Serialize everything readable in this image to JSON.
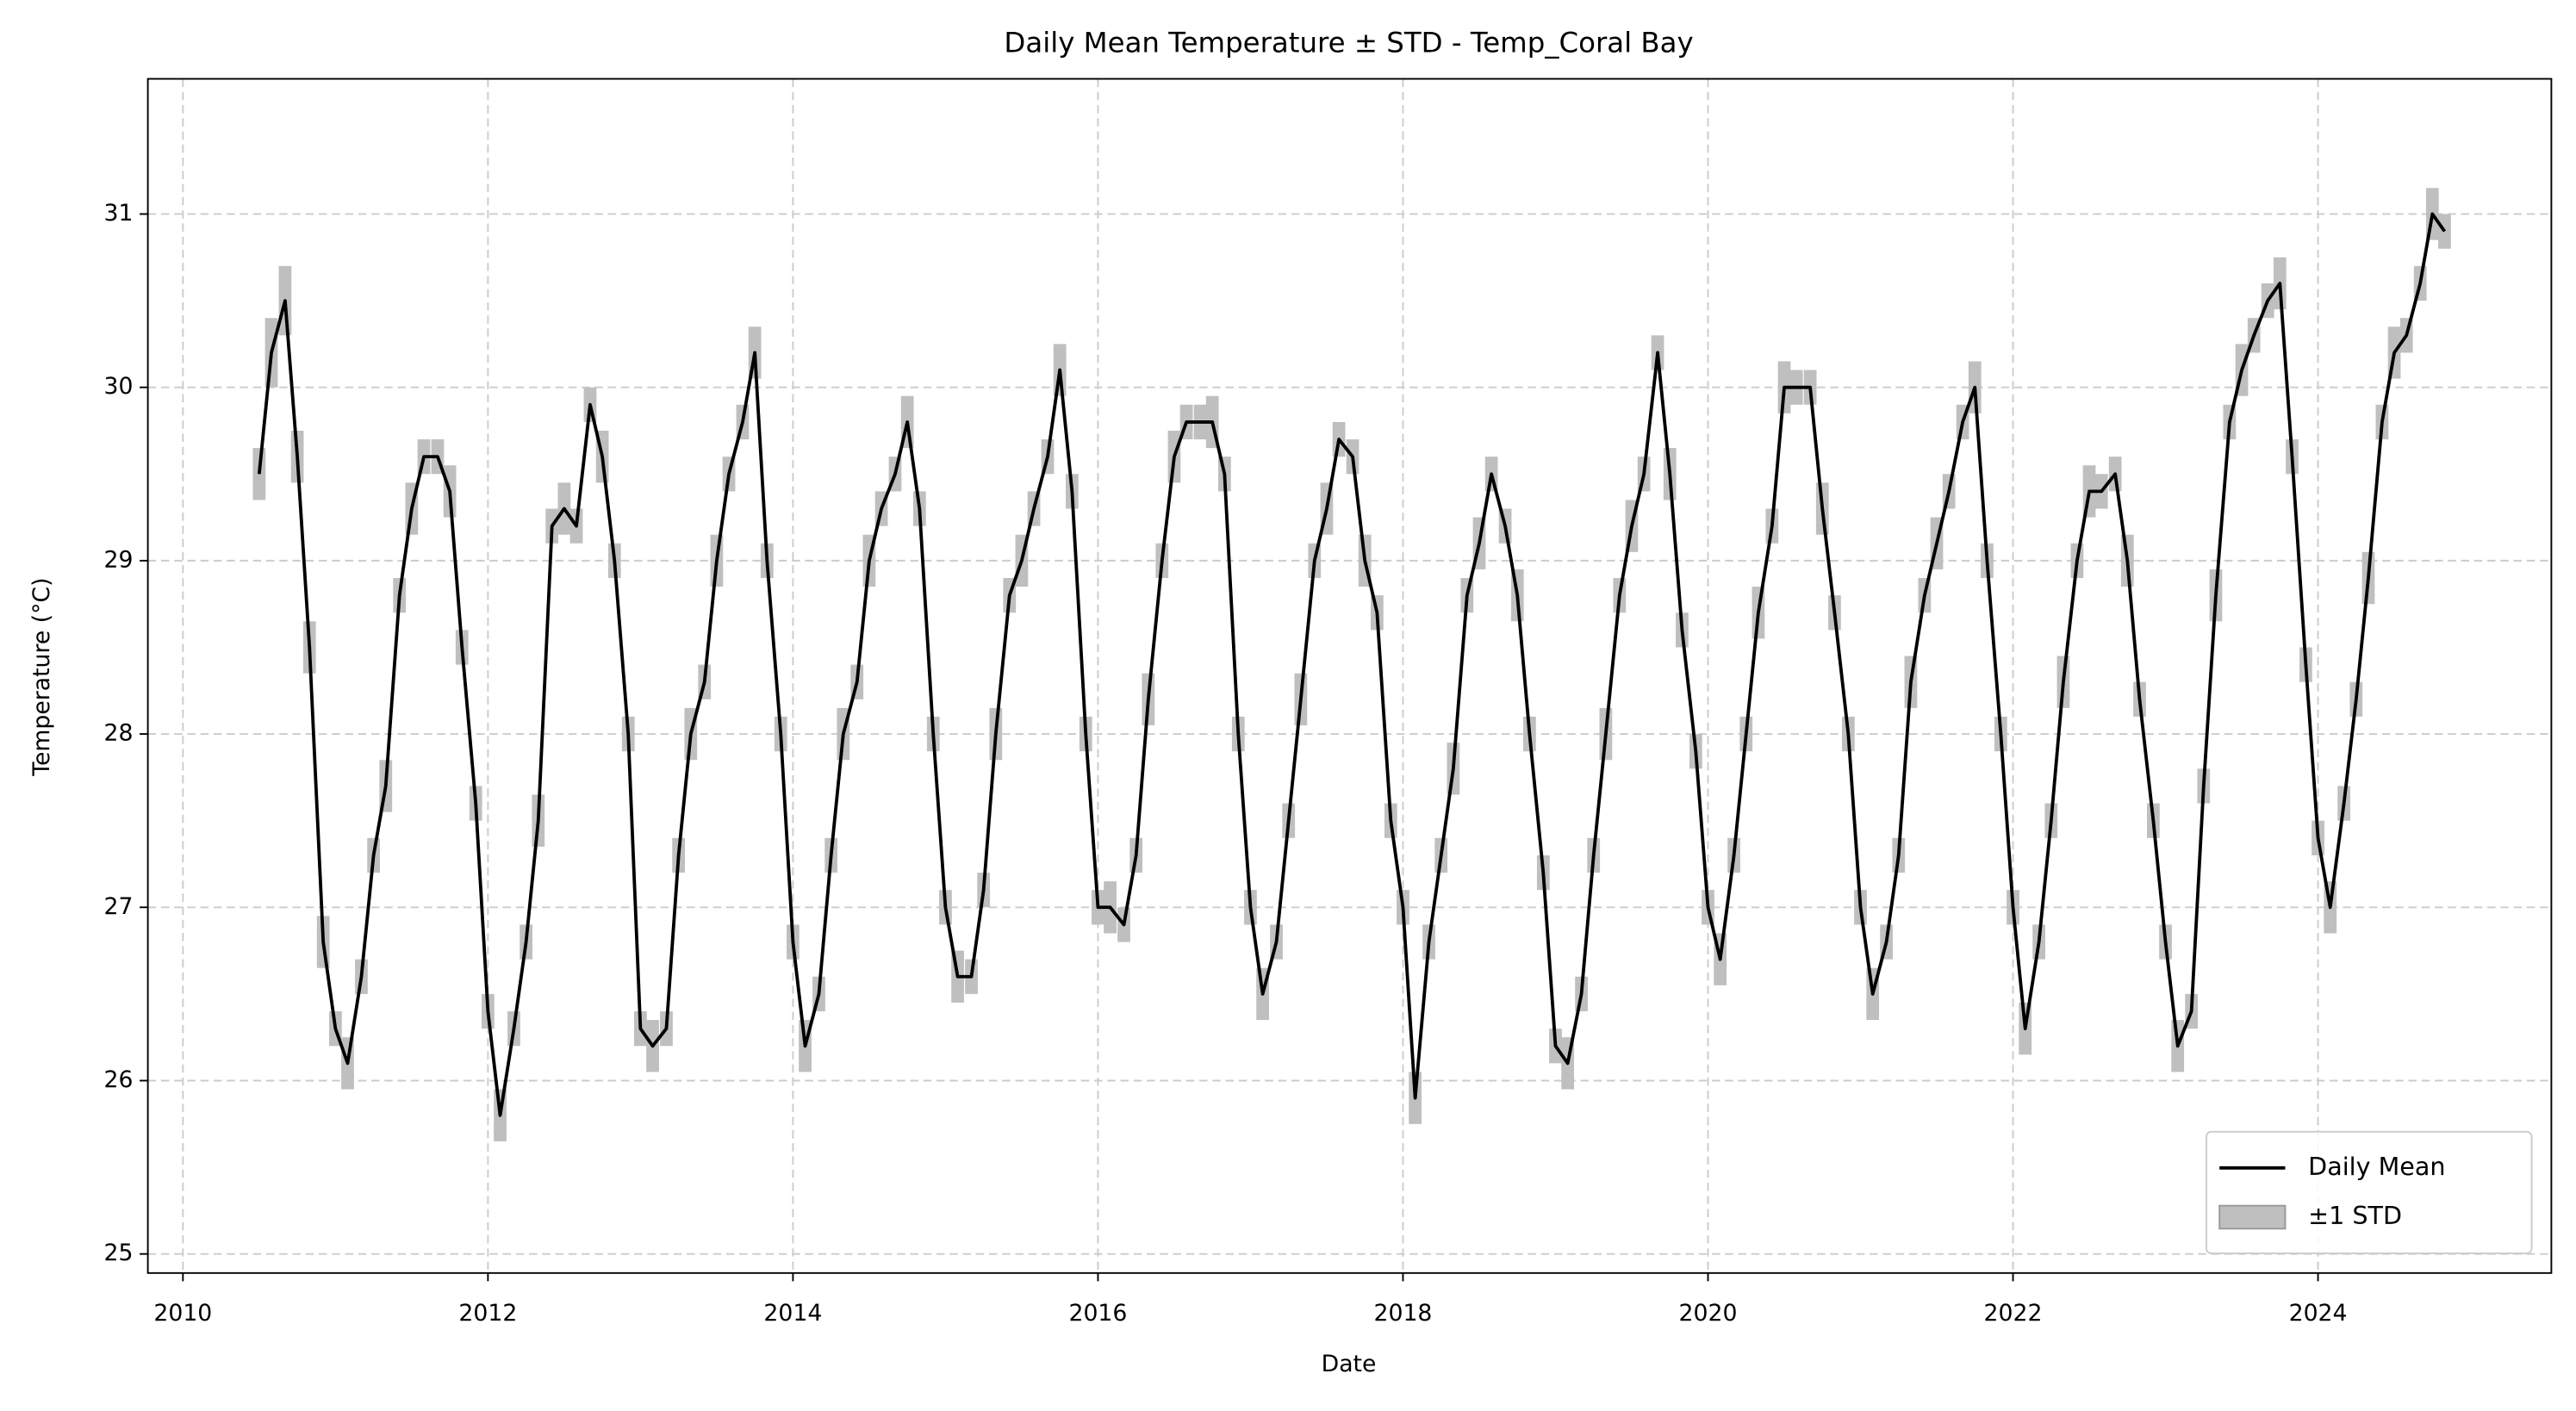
{
  "chart_data": {
    "type": "line",
    "title": "Daily Mean Temperature ± STD - Temp_Coral Bay",
    "x_label": "Date",
    "y_label": "Temperature (°C)",
    "xlim": [
      2009.77,
      2025.53
    ],
    "xticks": [
      2010,
      2012,
      2014,
      2016,
      2018,
      2020,
      2022,
      2024
    ],
    "ylim": [
      24.89,
      31.78
    ],
    "yticks": [
      25,
      26,
      27,
      28,
      29,
      30,
      31
    ],
    "grid": true,
    "legend": "lower right",
    "x": [
      2010.5,
      2010.58,
      2010.67,
      2010.75,
      2010.83,
      2010.92,
      2011,
      2011.08,
      2011.17,
      2011.25,
      2011.33,
      2011.42,
      2011.5,
      2011.58,
      2011.67,
      2011.75,
      2011.83,
      2011.92,
      2012,
      2012.08,
      2012.17,
      2012.25,
      2012.33,
      2012.42,
      2012.5,
      2012.58,
      2012.67,
      2012.75,
      2012.83,
      2012.92,
      2013,
      2013.08,
      2013.17,
      2013.25,
      2013.33,
      2013.42,
      2013.5,
      2013.58,
      2013.67,
      2013.75,
      2013.83,
      2013.92,
      2014,
      2014.08,
      2014.17,
      2014.25,
      2014.33,
      2014.42,
      2014.5,
      2014.58,
      2014.67,
      2014.75,
      2014.83,
      2014.92,
      2015,
      2015.08,
      2015.17,
      2015.25,
      2015.33,
      2015.42,
      2015.5,
      2015.58,
      2015.67,
      2015.75,
      2015.83,
      2015.92,
      2016,
      2016.08,
      2016.17,
      2016.25,
      2016.33,
      2016.42,
      2016.5,
      2016.58,
      2016.67,
      2016.75,
      2016.83,
      2016.92,
      2017,
      2017.08,
      2017.17,
      2017.25,
      2017.33,
      2017.42,
      2017.5,
      2017.58,
      2017.67,
      2017.75,
      2017.83,
      2017.92,
      2018,
      2018.08,
      2018.17,
      2018.25,
      2018.33,
      2018.42,
      2018.5,
      2018.58,
      2018.67,
      2018.75,
      2018.83,
      2018.92,
      2019,
      2019.08,
      2019.17,
      2019.25,
      2019.33,
      2019.42,
      2019.5,
      2019.58,
      2019.67,
      2019.75,
      2019.83,
      2019.92,
      2020,
      2020.08,
      2020.17,
      2020.25,
      2020.33,
      2020.42,
      2020.5,
      2020.58,
      2020.67,
      2020.75,
      2020.83,
      2020.92,
      2021,
      2021.08,
      2021.17,
      2021.25,
      2021.33,
      2021.42,
      2021.5,
      2021.58,
      2021.67,
      2021.75,
      2021.83,
      2021.92,
      2022,
      2022.08,
      2022.17,
      2022.25,
      2022.33,
      2022.42,
      2022.5,
      2022.58,
      2022.67,
      2022.75,
      2022.83,
      2022.92,
      2023,
      2023.08,
      2023.17,
      2023.25,
      2023.33,
      2023.42,
      2023.5,
      2023.58,
      2023.67,
      2023.75,
      2023.83,
      2023.92,
      2024,
      2024.08,
      2024.17,
      2024.25,
      2024.33,
      2024.42,
      2024.5,
      2024.58,
      2024.67,
      2024.75,
      2024.83
    ],
    "series": [
      {
        "name": "Daily Mean",
        "color": "#000000",
        "values": [
          29.5,
          30.2,
          30.5,
          29.6,
          28.5,
          26.8,
          26.3,
          26.1,
          26.6,
          27.3,
          27.7,
          28.8,
          29.3,
          29.6,
          29.6,
          29.4,
          28.5,
          27.6,
          26.4,
          25.8,
          26.3,
          26.8,
          27.5,
          29.2,
          29.3,
          29.2,
          29.9,
          29.6,
          29.0,
          28.0,
          26.3,
          26.2,
          26.3,
          27.3,
          28.0,
          28.3,
          29.0,
          29.5,
          29.8,
          30.2,
          29.0,
          28.0,
          26.8,
          26.2,
          26.5,
          27.3,
          28.0,
          28.3,
          29.0,
          29.3,
          29.5,
          29.8,
          29.3,
          28.0,
          27.0,
          26.6,
          26.6,
          27.1,
          28.0,
          28.8,
          29.0,
          29.3,
          29.6,
          30.1,
          29.4,
          28.0,
          27.0,
          27.0,
          26.9,
          27.3,
          28.2,
          29.0,
          29.6,
          29.8,
          29.8,
          29.8,
          29.5,
          28.0,
          27.0,
          26.5,
          26.8,
          27.5,
          28.2,
          29.0,
          29.3,
          29.7,
          29.6,
          29.0,
          28.7,
          27.5,
          27.0,
          25.9,
          26.8,
          27.3,
          27.8,
          28.8,
          29.1,
          29.5,
          29.2,
          28.8,
          28.0,
          27.2,
          26.2,
          26.1,
          26.5,
          27.3,
          28.0,
          28.8,
          29.2,
          29.5,
          30.2,
          29.5,
          28.6,
          27.9,
          27.0,
          26.7,
          27.3,
          28.0,
          28.7,
          29.2,
          30.0,
          30.0,
          30.0,
          29.3,
          28.7,
          28.0,
          27.0,
          26.5,
          26.8,
          27.3,
          28.3,
          28.8,
          29.1,
          29.4,
          29.8,
          30.0,
          29.0,
          28.0,
          27.0,
          26.3,
          26.8,
          27.5,
          28.3,
          29.0,
          29.4,
          29.4,
          29.5,
          29.0,
          28.2,
          27.5,
          26.8,
          26.2,
          26.4,
          27.7,
          28.8,
          29.8,
          30.1,
          30.3,
          30.5,
          30.6,
          29.6,
          28.4,
          27.4,
          27.0,
          27.6,
          28.2,
          28.9,
          29.8,
          30.2,
          30.3,
          30.6,
          31.0,
          30.9
        ]
      }
    ],
    "band": {
      "name": "±1 STD",
      "color": "#bfbfbf",
      "values": [
        0.15,
        0.2,
        0.2,
        0.15,
        0.15,
        0.15,
        0.1,
        0.15,
        0.1,
        0.1,
        0.15,
        0.1,
        0.15,
        0.1,
        0.1,
        0.15,
        0.1,
        0.1,
        0.1,
        0.15,
        0.1,
        0.1,
        0.15,
        0.1,
        0.15,
        0.1,
        0.1,
        0.15,
        0.1,
        0.1,
        0.1,
        0.15,
        0.1,
        0.1,
        0.15,
        0.1,
        0.15,
        0.1,
        0.1,
        0.15,
        0.1,
        0.1,
        0.1,
        0.15,
        0.1,
        0.1,
        0.15,
        0.1,
        0.15,
        0.1,
        0.1,
        0.15,
        0.1,
        0.1,
        0.1,
        0.15,
        0.1,
        0.1,
        0.15,
        0.1,
        0.15,
        0.1,
        0.1,
        0.15,
        0.1,
        0.1,
        0.1,
        0.15,
        0.1,
        0.1,
        0.15,
        0.1,
        0.15,
        0.1,
        0.1,
        0.15,
        0.1,
        0.1,
        0.1,
        0.15,
        0.1,
        0.1,
        0.15,
        0.1,
        0.15,
        0.1,
        0.1,
        0.15,
        0.1,
        0.1,
        0.1,
        0.15,
        0.1,
        0.1,
        0.15,
        0.1,
        0.15,
        0.1,
        0.1,
        0.15,
        0.1,
        0.1,
        0.1,
        0.15,
        0.1,
        0.1,
        0.15,
        0.1,
        0.15,
        0.1,
        0.1,
        0.15,
        0.1,
        0.1,
        0.1,
        0.15,
        0.1,
        0.1,
        0.15,
        0.1,
        0.15,
        0.1,
        0.1,
        0.15,
        0.1,
        0.1,
        0.1,
        0.15,
        0.1,
        0.1,
        0.15,
        0.1,
        0.15,
        0.1,
        0.1,
        0.15,
        0.1,
        0.1,
        0.1,
        0.15,
        0.1,
        0.1,
        0.15,
        0.1,
        0.15,
        0.1,
        0.1,
        0.15,
        0.1,
        0.1,
        0.1,
        0.15,
        0.1,
        0.1,
        0.15,
        0.1,
        0.15,
        0.1,
        0.1,
        0.15,
        0.1,
        0.1,
        0.1,
        0.15,
        0.1,
        0.1,
        0.15,
        0.1,
        0.15,
        0.1,
        0.1,
        0.15,
        0.1
      ]
    }
  }
}
